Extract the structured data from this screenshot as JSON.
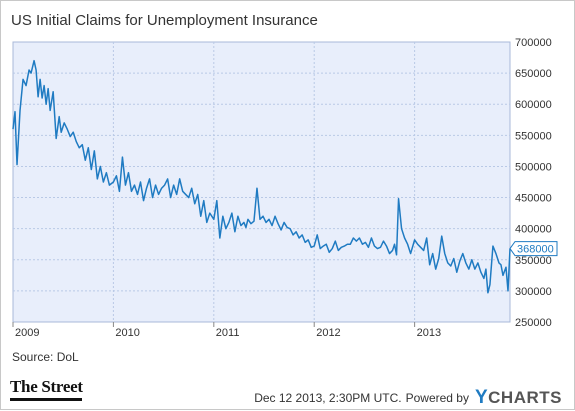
{
  "header": {
    "title": "US Initial Claims for Unemployment Insurance"
  },
  "footer": {
    "source": "Source: DoL",
    "logo": "The Street",
    "timestamp": "Dec 12 2013, 2:30PM UTC.",
    "powered_by": "Powered by",
    "brand_first": "Y",
    "brand_rest": "CHARTS"
  },
  "colors": {
    "line": "#1f7bc2",
    "plot_bg": "#e8eefb",
    "grid": "#b9c9e6"
  },
  "chart_data": {
    "type": "line",
    "title": "US Initial Claims for Unemployment Insurance",
    "xlabel": "",
    "ylabel": "",
    "xlim": [
      2009.0,
      2013.95
    ],
    "ylim": [
      250000,
      700000
    ],
    "x_ticks": [
      2009,
      2010,
      2011,
      2012,
      2013
    ],
    "x_tick_labels": [
      "2009",
      "2010",
      "2011",
      "2012",
      "2013"
    ],
    "y_ticks": [
      250000,
      300000,
      350000,
      400000,
      450000,
      500000,
      550000,
      600000,
      650000,
      700000
    ],
    "y_tick_labels": [
      "250000",
      "300000",
      "350000",
      "400000",
      "450000",
      "500000",
      "550000",
      "600000",
      "650000",
      "700000"
    ],
    "grid": true,
    "last_value_label": "368000",
    "series": [
      {
        "x": [
          2009.0,
          2009.02,
          2009.04,
          2009.07,
          2009.1,
          2009.13,
          2009.16,
          2009.18,
          2009.21,
          2009.23,
          2009.25,
          2009.27,
          2009.29,
          2009.31,
          2009.33,
          2009.35,
          2009.37,
          2009.4,
          2009.43,
          2009.46,
          2009.48,
          2009.51,
          2009.54,
          2009.57,
          2009.6,
          2009.63,
          2009.66,
          2009.69,
          2009.72,
          2009.75,
          2009.78,
          2009.81,
          2009.84,
          2009.87,
          2009.9,
          2009.93,
          2009.96,
          2010.0,
          2010.03,
          2010.06,
          2010.09,
          2010.12,
          2010.15,
          2010.18,
          2010.21,
          2010.24,
          2010.27,
          2010.3,
          2010.33,
          2010.36,
          2010.39,
          2010.42,
          2010.45,
          2010.48,
          2010.51,
          2010.54,
          2010.57,
          2010.6,
          2010.63,
          2010.66,
          2010.69,
          2010.72,
          2010.75,
          2010.78,
          2010.81,
          2010.84,
          2010.87,
          2010.9,
          2010.93,
          2010.96,
          2011.0,
          2011.03,
          2011.06,
          2011.09,
          2011.12,
          2011.15,
          2011.18,
          2011.21,
          2011.24,
          2011.27,
          2011.3,
          2011.32,
          2011.34,
          2011.37,
          2011.4,
          2011.43,
          2011.46,
          2011.49,
          2011.52,
          2011.55,
          2011.58,
          2011.61,
          2011.64,
          2011.67,
          2011.7,
          2011.73,
          2011.76,
          2011.79,
          2011.82,
          2011.85,
          2011.88,
          2011.91,
          2011.94,
          2011.97,
          2012.0,
          2012.03,
          2012.06,
          2012.09,
          2012.12,
          2012.15,
          2012.18,
          2012.21,
          2012.24,
          2012.27,
          2012.3,
          2012.33,
          2012.36,
          2012.39,
          2012.42,
          2012.45,
          2012.48,
          2012.51,
          2012.54,
          2012.57,
          2012.6,
          2012.63,
          2012.66,
          2012.69,
          2012.72,
          2012.75,
          2012.78,
          2012.8,
          2012.82,
          2012.84,
          2012.87,
          2012.9,
          2012.93,
          2012.96,
          2013.0,
          2013.03,
          2013.06,
          2013.09,
          2013.12,
          2013.15,
          2013.18,
          2013.21,
          2013.24,
          2013.27,
          2013.3,
          2013.33,
          2013.36,
          2013.39,
          2013.42,
          2013.45,
          2013.48,
          2013.51,
          2013.54,
          2013.57,
          2013.6,
          2013.63,
          2013.66,
          2013.69,
          2013.71,
          2013.73,
          2013.75,
          2013.78,
          2013.81,
          2013.84,
          2013.86,
          2013.88,
          2013.91,
          2013.93,
          2013.95
        ],
        "values": [
          560000,
          588000,
          503000,
          590000,
          640000,
          630000,
          655000,
          650000,
          670000,
          655000,
          612000,
          640000,
          610000,
          630000,
          600000,
          625000,
          590000,
          620000,
          545000,
          580000,
          555000,
          570000,
          560000,
          548000,
          555000,
          540000,
          530000,
          535000,
          510000,
          530000,
          495000,
          525000,
          480000,
          500000,
          475000,
          490000,
          470000,
          475000,
          485000,
          460000,
          515000,
          470000,
          490000,
          460000,
          470000,
          455000,
          475000,
          445000,
          465000,
          480000,
          450000,
          470000,
          455000,
          465000,
          470000,
          480000,
          450000,
          470000,
          455000,
          480000,
          460000,
          455000,
          450000,
          465000,
          440000,
          455000,
          420000,
          445000,
          410000,
          425000,
          415000,
          445000,
          385000,
          420000,
          400000,
          410000,
          425000,
          395000,
          420000,
          405000,
          410000,
          402000,
          415000,
          408000,
          412000,
          465000,
          415000,
          420000,
          410000,
          415000,
          405000,
          420000,
          408000,
          398000,
          410000,
          402000,
          400000,
          390000,
          395000,
          385000,
          390000,
          378000,
          382000,
          370000,
          372000,
          390000,
          368000,
          372000,
          375000,
          362000,
          368000,
          380000,
          365000,
          370000,
          372000,
          375000,
          375000,
          385000,
          380000,
          385000,
          375000,
          378000,
          370000,
          385000,
          372000,
          368000,
          370000,
          380000,
          372000,
          360000,
          365000,
          375000,
          358000,
          448000,
          400000,
          385000,
          375000,
          360000,
          382000,
          375000,
          370000,
          365000,
          385000,
          342000,
          360000,
          335000,
          352000,
          388000,
          360000,
          345000,
          340000,
          352000,
          330000,
          348000,
          360000,
          345000,
          335000,
          350000,
          335000,
          345000,
          330000,
          320000,
          335000,
          297000,
          310000,
          372000,
          360000,
          345000,
          342000,
          325000,
          338000,
          300000,
          368000
        ]
      }
    ]
  }
}
